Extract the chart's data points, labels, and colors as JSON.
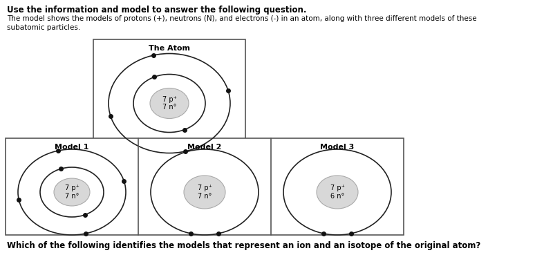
{
  "title_bold": "Use the information and model to answer the following question.",
  "subtitle": "The model shows the models of protons (+), neutrons (N), and electrons (-) in an atom, along with three different models of these\nsubatomic particles.",
  "bottom_question": "Which of the following identifies the models that represent an ion and an isotope of the original atom?",
  "atom_label": "The Atom",
  "atom_nucleus_text": "7 p⁺\n7 n°",
  "model1_label": "Model 1",
  "model1_nucleus_text": "7 p⁺\n7 n°",
  "model2_label": "Model 2",
  "model2_nucleus_text": "7 p⁺\n7 n°",
  "model3_label": "Model 3",
  "model3_nucleus_text": "7 p⁺\n6 n°",
  "bg_color": "#ffffff",
  "nucleus_fill": "#d8d8d8",
  "nucleus_edge": "#aaaaaa",
  "orbit_color": "#222222",
  "electron_color": "#111111",
  "text_color": "#000000",
  "box_edge_color": "#555555"
}
